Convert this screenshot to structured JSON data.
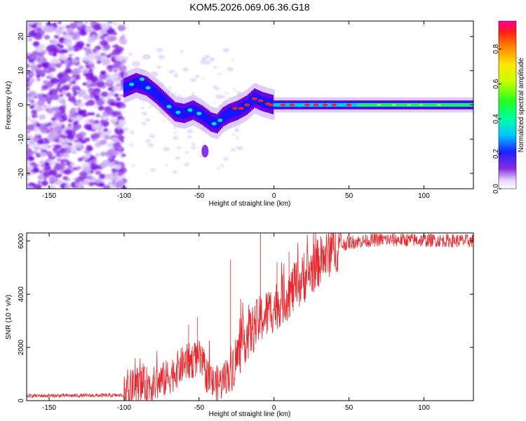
{
  "chart_data": [
    {
      "type": "heatmap",
      "title": "KOM5.2026.069.06.36.G18",
      "xlabel": "Height of straight line (km)",
      "ylabel": "Frequency (Hz)",
      "xlim": [
        -165,
        133
      ],
      "ylim": [
        -24.5,
        24.5
      ],
      "x_ticks": [
        -150,
        -100,
        -50,
        0,
        50,
        100
      ],
      "y_ticks": [
        -20,
        -10,
        0,
        10,
        20
      ],
      "colorbar": {
        "label": "Normalized spectral amplitude",
        "range": [
          0,
          0.96
        ],
        "ticks": [
          0.0,
          0.2,
          0.4,
          0.6,
          0.8
        ]
      },
      "ridge": [
        {
          "x": -100,
          "freq": 5.0
        },
        {
          "x": -92,
          "freq": 6.5
        },
        {
          "x": -85,
          "freq": 5.5
        },
        {
          "x": -78,
          "freq": 3.0
        },
        {
          "x": -72,
          "freq": 0.5
        },
        {
          "x": -66,
          "freq": -2.0
        },
        {
          "x": -60,
          "freq": -2.5
        },
        {
          "x": -54,
          "freq": -1.5
        },
        {
          "x": -48,
          "freq": -3.0
        },
        {
          "x": -42,
          "freq": -5.0
        },
        {
          "x": -38,
          "freq": -5.5
        },
        {
          "x": -34,
          "freq": -3.5
        },
        {
          "x": -30,
          "freq": -2.5
        },
        {
          "x": -24,
          "freq": -1.5
        },
        {
          "x": -18,
          "freq": 0.0
        },
        {
          "x": -13,
          "freq": 2.0
        },
        {
          "x": -8,
          "freq": 1.0
        },
        {
          "x": 0,
          "freq": 0.0
        },
        {
          "x": 20,
          "freq": 0.0
        },
        {
          "x": 60,
          "freq": 0.0
        },
        {
          "x": 133,
          "freq": 0.0
        }
      ]
    },
    {
      "type": "line",
      "title": "",
      "xlabel": "Height of straight line (km)",
      "ylabel": "SNR (10 * v/v)",
      "xlim": [
        -165,
        133
      ],
      "ylim": [
        0,
        6300
      ],
      "x_ticks": [
        -150,
        -100,
        -50,
        0,
        50,
        100
      ],
      "y_ticks": [
        0,
        2000,
        4000,
        6000
      ],
      "color": "#e8282d",
      "trend": [
        {
          "x": -165,
          "y": 180
        },
        {
          "x": -100,
          "y": 200
        },
        {
          "x": -92,
          "y": 600
        },
        {
          "x": -80,
          "y": 600
        },
        {
          "x": -70,
          "y": 900
        },
        {
          "x": -60,
          "y": 1400
        },
        {
          "x": -50,
          "y": 1600
        },
        {
          "x": -45,
          "y": 1000
        },
        {
          "x": -40,
          "y": 600
        },
        {
          "x": -35,
          "y": 700
        },
        {
          "x": -30,
          "y": 1100
        },
        {
          "x": -25,
          "y": 1600
        },
        {
          "x": -20,
          "y": 2300
        },
        {
          "x": -15,
          "y": 2600
        },
        {
          "x": -10,
          "y": 3000
        },
        {
          "x": 0,
          "y": 3500
        },
        {
          "x": 10,
          "y": 4000
        },
        {
          "x": 20,
          "y": 4600
        },
        {
          "x": 30,
          "y": 5200
        },
        {
          "x": 40,
          "y": 5700
        },
        {
          "x": 50,
          "y": 5950
        },
        {
          "x": 70,
          "y": 6050
        },
        {
          "x": 133,
          "y": 6000
        }
      ],
      "spikes": [
        {
          "x": -75,
          "y": 1150
        },
        {
          "x": -57,
          "y": 2850
        },
        {
          "x": -51,
          "y": 3150
        },
        {
          "x": -29,
          "y": 5300
        },
        {
          "x": -17,
          "y": 3600
        },
        {
          "x": -9,
          "y": 6300
        },
        {
          "x": 2,
          "y": 5200
        },
        {
          "x": 10,
          "y": 5600
        },
        {
          "x": 20,
          "y": 5550
        }
      ]
    }
  ]
}
